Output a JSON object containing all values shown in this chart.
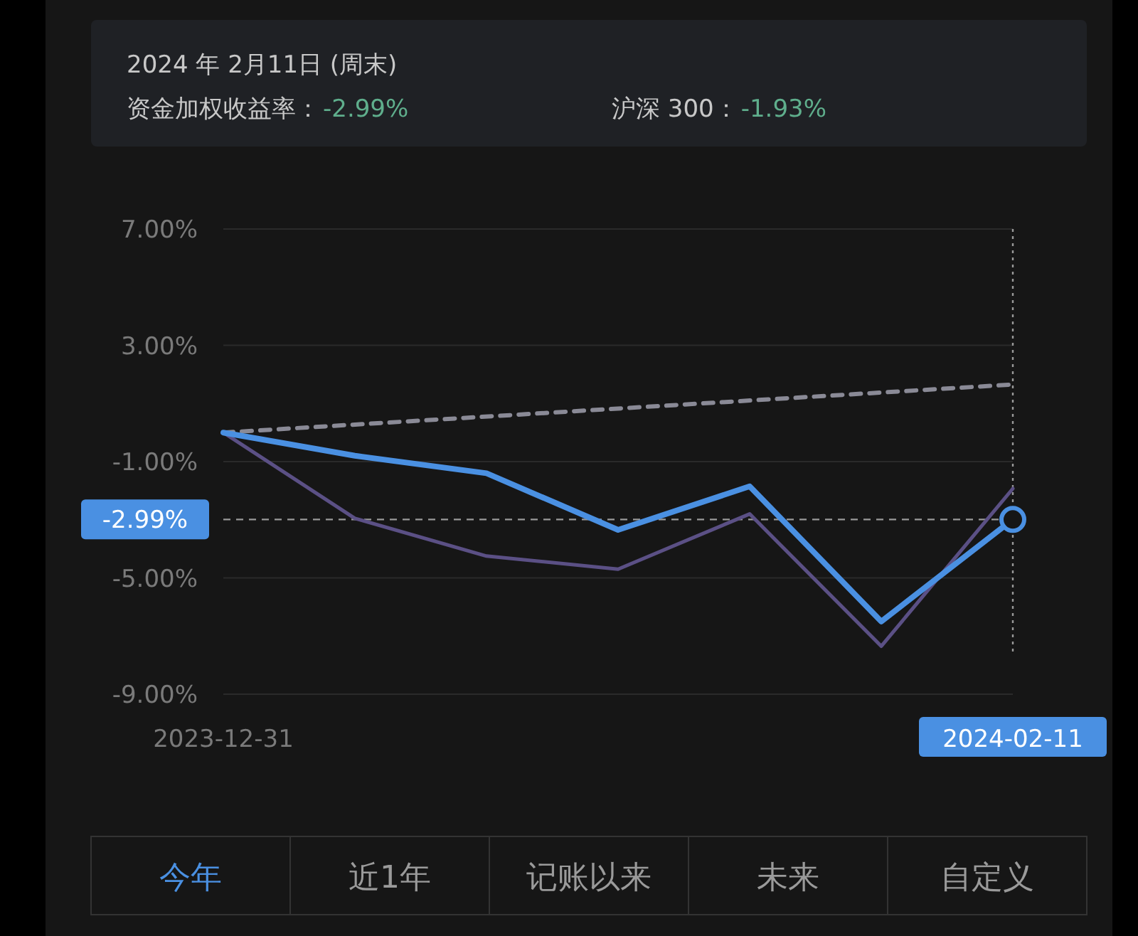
{
  "chart_data": {
    "type": "line",
    "title": "2024 年 2月11日 (周末)",
    "annotations": [
      "资金加权收益率：",
      "-2.99%",
      "沪深 300：",
      "-1.93%",
      "今年",
      "近1年",
      "记账以来",
      "未来",
      "自定义"
    ],
    "x": [
      "2023-12-31",
      "2024-01-07",
      "2024-01-14",
      "2024-01-21",
      "2024-01-28",
      "2024-02-04",
      "2024-02-11"
    ],
    "series": [
      {
        "color": "#5b5085",
        "values": [
          0,
          -2.95,
          -4.25,
          -4.7,
          -2.8,
          -7.35,
          -1.93
        ]
      },
      {
        "color": "#8a8a96",
        "line_style": "dashed",
        "x": [
          "2023-12-31",
          "2024-02-11"
        ],
        "values": [
          0,
          1.65
        ]
      },
      {
        "color": "#4a90e2",
        "values": [
          0,
          -0.8,
          -1.4,
          -3.35,
          -1.85,
          -6.5,
          -2.99
        ]
      }
    ],
    "xlim": [
      "2023-12-31",
      "2024-02-11"
    ],
    "xticks": [
      "2023-12-31",
      "2024-02-11"
    ],
    "ylim": [
      -9,
      7
    ],
    "yticks": [
      {
        "value": 7,
        "label": "7.00%"
      },
      {
        "value": 3,
        "label": "3.00%"
      },
      {
        "value": -1,
        "label": "-1.00%"
      },
      {
        "value": -5,
        "label": "-5.00%"
      },
      {
        "value": -9,
        "label": "-9.00%"
      }
    ],
    "ref_lines": [
      {
        "axis": "y",
        "value": -2.99,
        "label": "-2.99%",
        "color": "#9a9a9a",
        "line_style": "dashed"
      },
      {
        "axis": "x",
        "value": "2024-02-11",
        "color": "#9a9a9a",
        "line_style": "dotted"
      }
    ],
    "grid": "y",
    "marker": "none",
    "line_style": "solid"
  }
}
